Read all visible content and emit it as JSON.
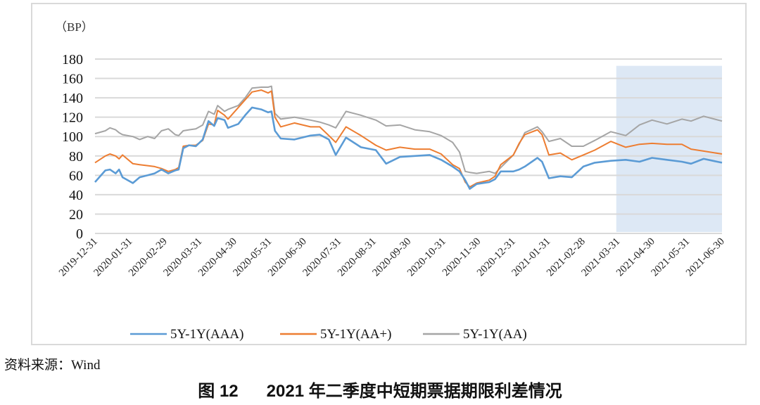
{
  "chart_data": {
    "type": "line",
    "unit_label": "（BP）",
    "ylim": [
      0,
      180
    ],
    "yticks": [
      0,
      20,
      40,
      60,
      80,
      100,
      120,
      140,
      160,
      180
    ],
    "grid": true,
    "legend_placement": "bottom",
    "xtick_labels": [
      "2019-12-31",
      "2020-01-31",
      "2020-02-29",
      "2020-03-31",
      "2020-04-30",
      "2020-05-31",
      "2020-06-30",
      "2020-07-31",
      "2020-08-31",
      "2020-09-30",
      "2020-10-31",
      "2020-11-30",
      "2020-12-31",
      "2021-01-31",
      "2021-02-28",
      "2021-03-31",
      "2021-04-30",
      "2021-05-31",
      "2021-06-30"
    ],
    "highlight_range": {
      "from": "2021-03-31",
      "to": "2021-06-30",
      "color": "#dde8f5"
    },
    "x": [
      "2019-12-31",
      "2020-01-09",
      "2020-01-13",
      "2020-01-18",
      "2020-01-21",
      "2020-01-24",
      "2020-02-02",
      "2020-02-08",
      "2020-02-15",
      "2020-02-21",
      "2020-02-27",
      "2020-03-04",
      "2020-03-10",
      "2020-03-13",
      "2020-03-17",
      "2020-03-22",
      "2020-03-28",
      "2020-04-03",
      "2020-04-08",
      "2020-04-13",
      "2020-04-16",
      "2020-04-22",
      "2020-04-25",
      "2020-05-04",
      "2020-05-10",
      "2020-05-16",
      "2020-05-24",
      "2020-05-30",
      "2020-06-02",
      "2020-06-05",
      "2020-06-10",
      "2020-06-22",
      "2020-07-06",
      "2020-07-14",
      "2020-07-22",
      "2020-07-28",
      "2020-08-06",
      "2020-08-19",
      "2020-09-01",
      "2020-09-10",
      "2020-09-22",
      "2020-10-05",
      "2020-10-18",
      "2020-10-28",
      "2020-11-07",
      "2020-11-13",
      "2020-11-18",
      "2020-11-22",
      "2020-11-28",
      "2020-12-09",
      "2020-12-14",
      "2020-12-19",
      "2020-12-30",
      "2021-01-04",
      "2021-01-09",
      "2021-01-20",
      "2021-01-24",
      "2021-01-30",
      "2021-02-09",
      "2021-02-19",
      "2021-03-01",
      "2021-03-11",
      "2021-03-25",
      "2021-04-07",
      "2021-04-19",
      "2021-04-30",
      "2021-05-13",
      "2021-05-26",
      "2021-06-03",
      "2021-06-14",
      "2021-06-30"
    ],
    "series": [
      {
        "name": "5Y-1Y(AAA)",
        "color": "#5b9bd5",
        "values": [
          53,
          65,
          66,
          62,
          66,
          58,
          52,
          58,
          60,
          62,
          66,
          62,
          65,
          66,
          88,
          91,
          90,
          97,
          116,
          111,
          119,
          117,
          109,
          113,
          122,
          130,
          128,
          125,
          126,
          106,
          98,
          97,
          101,
          102,
          97,
          81,
          99,
          89,
          86,
          72,
          79,
          80,
          81,
          76,
          69,
          64,
          55,
          46,
          51,
          53,
          56,
          64,
          64,
          66,
          69,
          78,
          74,
          57,
          59,
          58,
          69,
          73,
          75,
          76,
          74,
          78,
          76,
          74,
          72,
          77,
          73
        ]
      },
      {
        "name": "5Y-1Y(AA+)",
        "color": "#ed7d31",
        "values": [
          73,
          80,
          82,
          80,
          77,
          81,
          72,
          71,
          70,
          69,
          67,
          64,
          66,
          68,
          90,
          91,
          91,
          96,
          113,
          112,
          127,
          122,
          118,
          130,
          138,
          146,
          148,
          145,
          147,
          120,
          110,
          114,
          110,
          110,
          101,
          94,
          110,
          101,
          91,
          86,
          89,
          87,
          87,
          82,
          71,
          67,
          53,
          48,
          52,
          55,
          59,
          71,
          81,
          93,
          102,
          107,
          102,
          81,
          83,
          76,
          81,
          86,
          95,
          89,
          92,
          93,
          92,
          92,
          87,
          85,
          82
        ]
      },
      {
        "name": "5Y-1Y(AA)",
        "color": "#a5a5a5",
        "values": [
          103,
          106,
          109,
          107,
          104,
          102,
          100,
          97,
          100,
          98,
          106,
          108,
          102,
          101,
          106,
          107,
          108,
          112,
          126,
          123,
          132,
          126,
          128,
          132,
          140,
          150,
          151,
          151,
          152,
          124,
          118,
          120,
          117,
          115,
          112,
          109,
          126,
          122,
          117,
          111,
          112,
          107,
          105,
          101,
          94,
          84,
          64,
          63,
          62,
          64,
          62,
          68,
          81,
          92,
          104,
          110,
          105,
          95,
          98,
          90,
          90,
          96,
          105,
          101,
          112,
          117,
          113,
          118,
          116,
          121,
          116
        ]
      }
    ]
  },
  "source": "资料来源：Wind",
  "caption": "图 12      2021 年二季度中短期票据期限利差情况"
}
